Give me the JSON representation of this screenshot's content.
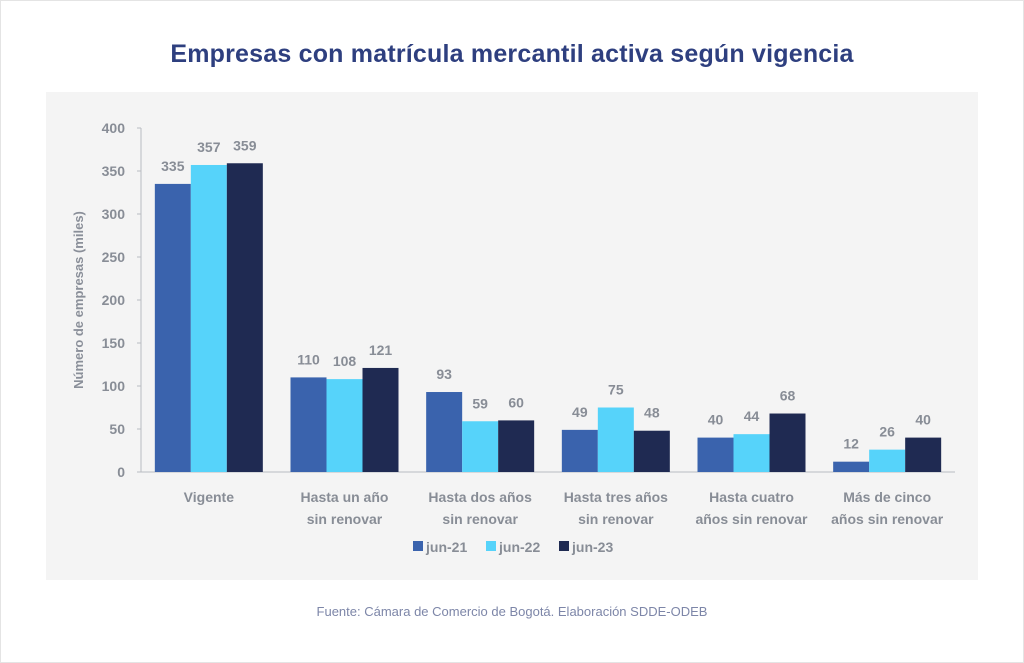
{
  "title": "Empresas con matrícula mercantil activa según vigencia",
  "source": "Fuente: Cámara de Comercio de Bogotá. Elaboración SDDE-ODEB",
  "chart_data": {
    "type": "bar",
    "title": "Empresas con matrícula mercantil activa según vigencia",
    "xlabel": "",
    "ylabel": "Número de empresas (miles)",
    "ylim": [
      0,
      400
    ],
    "yticks": [
      0,
      50,
      100,
      150,
      200,
      250,
      300,
      350,
      400
    ],
    "grid": false,
    "legend_position": "bottom",
    "categories": [
      [
        "Vigente"
      ],
      [
        "Hasta un año",
        "sin renovar"
      ],
      [
        "Hasta dos años",
        "sin renovar"
      ],
      [
        "Hasta tres años",
        "sin renovar"
      ],
      [
        "Hasta cuatro",
        "años sin renovar"
      ],
      [
        "Más de cinco",
        "años sin renovar"
      ]
    ],
    "series": [
      {
        "name": "jun-21",
        "color": "#3a63ad",
        "values": [
          335,
          110,
          93,
          49,
          40,
          12
        ]
      },
      {
        "name": "jun-22",
        "color": "#56d3fa",
        "values": [
          357,
          108,
          59,
          75,
          44,
          26
        ]
      },
      {
        "name": "jun-23",
        "color": "#1f2a52",
        "values": [
          359,
          121,
          60,
          48,
          68,
          40
        ]
      }
    ]
  }
}
